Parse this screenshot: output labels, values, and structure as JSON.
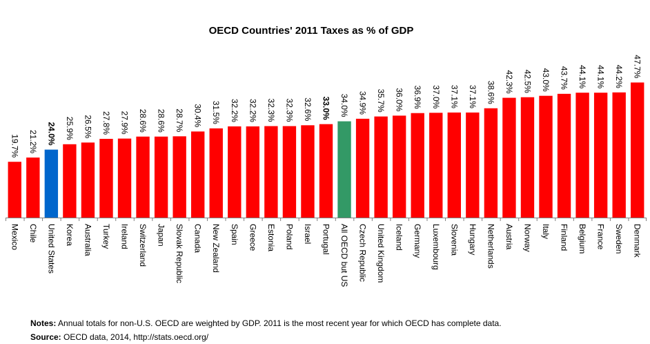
{
  "chart_data": {
    "type": "bar",
    "title": "OECD Countries' 2011 Taxes as % of GDP",
    "xlabel": "",
    "ylabel": "",
    "ylim": [
      0,
      50
    ],
    "grid": false,
    "legend": "none",
    "categories": [
      "Mexico",
      "Chile",
      "United States",
      "Korea",
      "Australia",
      "Turkey",
      "Ireland",
      "Switzerland",
      "Japan",
      "Slovak Republic",
      "Canada",
      "New Zealand",
      "Spain",
      "Greece",
      "Estonia",
      "Poland",
      "Israel",
      "Portugal",
      "All OECD but US",
      "Czech Republic",
      "United Kingdom",
      "Iceland",
      "Germany",
      "Luxembourg",
      "Slovenia",
      "Hungary",
      "Netherlands",
      "Austria",
      "Norway",
      "Italy",
      "Finland",
      "Belgium",
      "France",
      "Sweden",
      "Denmark"
    ],
    "values": [
      19.7,
      21.2,
      24.0,
      25.9,
      26.5,
      27.8,
      27.9,
      28.6,
      28.6,
      28.7,
      30.4,
      31.5,
      32.2,
      32.2,
      32.3,
      32.3,
      32.6,
      33.0,
      34.0,
      34.9,
      35.7,
      36.0,
      36.9,
      37.0,
      37.1,
      37.1,
      38.6,
      42.3,
      42.5,
      43.0,
      43.7,
      44.1,
      44.1,
      44.2,
      47.7
    ],
    "labels": [
      "19.7%",
      "21.2%",
      "24.0%",
      "25.9%",
      "26.5%",
      "27.8%",
      "27.9%",
      "28.6%",
      "28.6%",
      "28.7%",
      "30.4%",
      "31.5%",
      "32.2%",
      "32.2%",
      "32.3%",
      "32.3%",
      "32.6%",
      "33.0%",
      "34.0%",
      "34.9%",
      "35.7%",
      "36.0%",
      "36.9%",
      "37.0%",
      "37.1%",
      "37.1%",
      "38.6%",
      "42.3%",
      "42.5%",
      "43.0%",
      "43.7%",
      "44.1%",
      "44.1%",
      "44.2%",
      "47.7%"
    ],
    "bold_labels": [
      "United States",
      "Portugal"
    ],
    "colors": {
      "default": "#ff0000",
      "United States": "#0066cc",
      "All OECD but US": "#339966",
      "axis": "#808080"
    }
  },
  "notes": {
    "label": "Notes:",
    "text": " Annual totals for non-U.S. OECD are weighted by GDP. 2011 is the most recent year for which OECD has complete data."
  },
  "source": {
    "label": "Source:",
    "text": " OECD data, 2014, http://stats.oecd.org/"
  }
}
